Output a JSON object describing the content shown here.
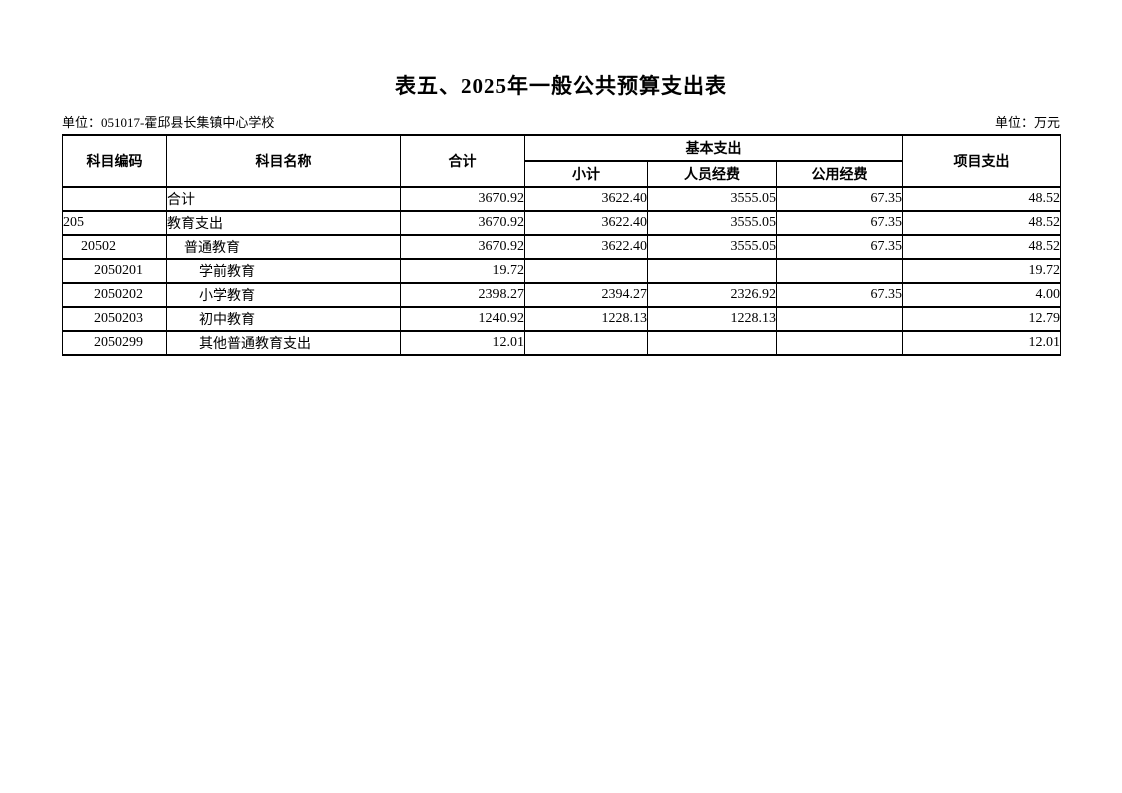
{
  "page": {
    "title": "表五、2025年一般公共预算支出表",
    "unit_left": "单位：051017-霍邱县长集镇中心学校",
    "unit_right": "单位：万元"
  },
  "table": {
    "headers": {
      "code": "科目编码",
      "name": "科目名称",
      "total": "合计",
      "basic_group": "基本支出",
      "basic_subtotal": "小计",
      "personnel": "人员经费",
      "public": "公用经费",
      "project": "项目支出"
    },
    "rows": [
      {
        "code": "",
        "name": "合计",
        "indent": 0,
        "total": "3670.92",
        "subtotal": "3622.40",
        "personnel": "3555.05",
        "public": "67.35",
        "project": "48.52"
      },
      {
        "code": "205",
        "name": "教育支出",
        "indent": 0,
        "total": "3670.92",
        "subtotal": "3622.40",
        "personnel": "3555.05",
        "public": "67.35",
        "project": "48.52"
      },
      {
        "code": "20502",
        "name": "普通教育",
        "indent": 1,
        "total": "3670.92",
        "subtotal": "3622.40",
        "personnel": "3555.05",
        "public": "67.35",
        "project": "48.52"
      },
      {
        "code": "2050201",
        "name": "学前教育",
        "indent": 2,
        "total": "19.72",
        "subtotal": "",
        "personnel": "",
        "public": "",
        "project": "19.72"
      },
      {
        "code": "2050202",
        "name": "小学教育",
        "indent": 2,
        "total": "2398.27",
        "subtotal": "2394.27",
        "personnel": "2326.92",
        "public": "67.35",
        "project": "4.00"
      },
      {
        "code": "2050203",
        "name": "初中教育",
        "indent": 2,
        "total": "1240.92",
        "subtotal": "1228.13",
        "personnel": "1228.13",
        "public": "",
        "project": "12.79"
      },
      {
        "code": "2050299",
        "name": "其他普通教育支出",
        "indent": 2,
        "total": "12.01",
        "subtotal": "",
        "personnel": "",
        "public": "",
        "project": "12.01"
      }
    ]
  }
}
